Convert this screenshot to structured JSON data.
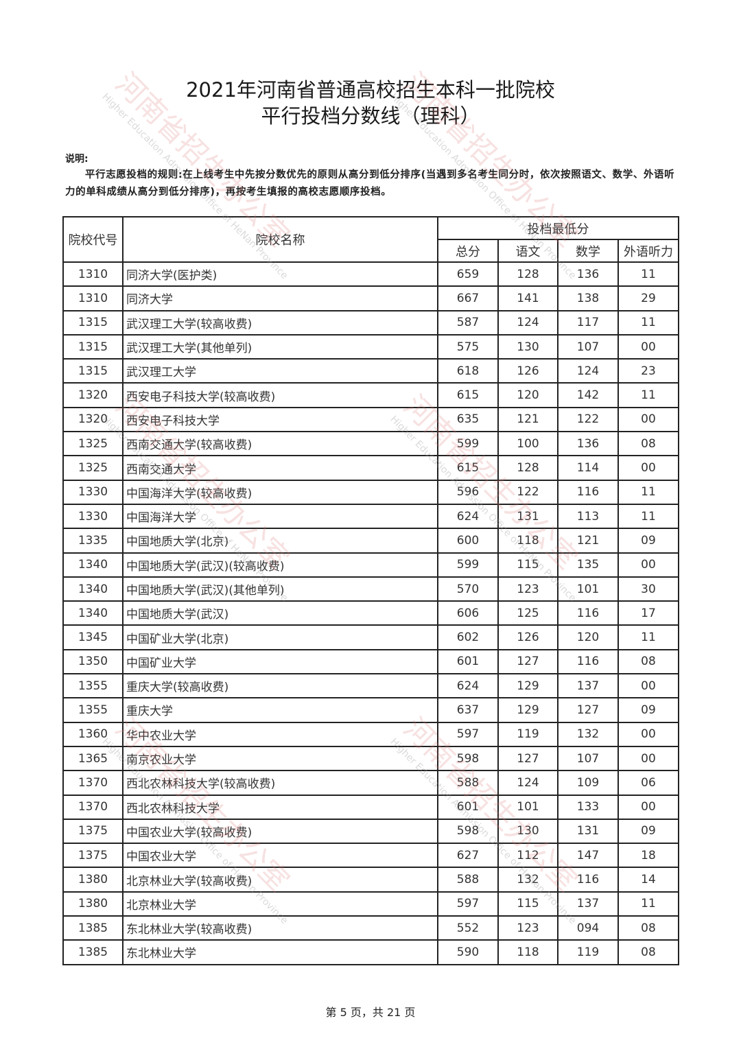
{
  "title_line1": "2021年河南省普通高校招生本科一批院校",
  "title_line2": "平行投档分数线（理科）",
  "note_label": "说明:",
  "note_text": "平行志愿投档的规则:在上线考生中先按分数优先的原则从高分到低分排序(当遇到多名考生同分时，依次按照语文、数学、外语听力的单科成绩从高分到低分排序)，再按考生填报的高校志愿顺序投档。",
  "watermark": {
    "cn": "河南省招生办公室",
    "en": "Higher Education Admission Office of HeNan Province"
  },
  "table": {
    "headers": {
      "code": "院校代号",
      "name": "院校名称",
      "group": "投档最低分",
      "total": "总分",
      "chinese": "语文",
      "math": "数学",
      "listening": "外语听力"
    },
    "rows": [
      [
        "1310",
        "同济大学(医护类)",
        "659",
        "128",
        "136",
        "11"
      ],
      [
        "1310",
        "同济大学",
        "667",
        "141",
        "138",
        "29"
      ],
      [
        "1315",
        "武汉理工大学(较高收费)",
        "587",
        "124",
        "117",
        "11"
      ],
      [
        "1315",
        "武汉理工大学(其他单列)",
        "575",
        "130",
        "107",
        "00"
      ],
      [
        "1315",
        "武汉理工大学",
        "618",
        "126",
        "124",
        "23"
      ],
      [
        "1320",
        "西安电子科技大学(较高收费)",
        "615",
        "120",
        "142",
        "11"
      ],
      [
        "1320",
        "西安电子科技大学",
        "635",
        "121",
        "122",
        "00"
      ],
      [
        "1325",
        "西南交通大学(较高收费)",
        "599",
        "100",
        "136",
        "08"
      ],
      [
        "1325",
        "西南交通大学",
        "615",
        "128",
        "114",
        "00"
      ],
      [
        "1330",
        "中国海洋大学(较高收费)",
        "596",
        "122",
        "116",
        "11"
      ],
      [
        "1330",
        "中国海洋大学",
        "624",
        "131",
        "113",
        "11"
      ],
      [
        "1335",
        "中国地质大学(北京)",
        "600",
        "118",
        "121",
        "09"
      ],
      [
        "1340",
        "中国地质大学(武汉)(较高收费)",
        "599",
        "115",
        "135",
        "00"
      ],
      [
        "1340",
        "中国地质大学(武汉)(其他单列)",
        "570",
        "123",
        "101",
        "30"
      ],
      [
        "1340",
        "中国地质大学(武汉)",
        "606",
        "125",
        "116",
        "17"
      ],
      [
        "1345",
        "中国矿业大学(北京)",
        "602",
        "126",
        "120",
        "11"
      ],
      [
        "1350",
        "中国矿业大学",
        "601",
        "127",
        "116",
        "08"
      ],
      [
        "1355",
        "重庆大学(较高收费)",
        "624",
        "129",
        "137",
        "00"
      ],
      [
        "1355",
        "重庆大学",
        "637",
        "129",
        "127",
        "09"
      ],
      [
        "1360",
        "华中农业大学",
        "597",
        "119",
        "132",
        "00"
      ],
      [
        "1365",
        "南京农业大学",
        "598",
        "127",
        "107",
        "00"
      ],
      [
        "1370",
        "西北农林科技大学(较高收费)",
        "588",
        "124",
        "109",
        "06"
      ],
      [
        "1370",
        "西北农林科技大学",
        "601",
        "101",
        "133",
        "00"
      ],
      [
        "1375",
        "中国农业大学(较高收费)",
        "598",
        "130",
        "131",
        "09"
      ],
      [
        "1375",
        "中国农业大学",
        "627",
        "112",
        "147",
        "18"
      ],
      [
        "1380",
        "北京林业大学(较高收费)",
        "588",
        "132",
        "116",
        "14"
      ],
      [
        "1380",
        "北京林业大学",
        "597",
        "115",
        "137",
        "11"
      ],
      [
        "1385",
        "东北林业大学(较高收费)",
        "552",
        "123",
        "094",
        "08"
      ],
      [
        "1385",
        "东北林业大学",
        "590",
        "118",
        "119",
        "08"
      ]
    ]
  },
  "footer": "第 5 页，共 21 页"
}
